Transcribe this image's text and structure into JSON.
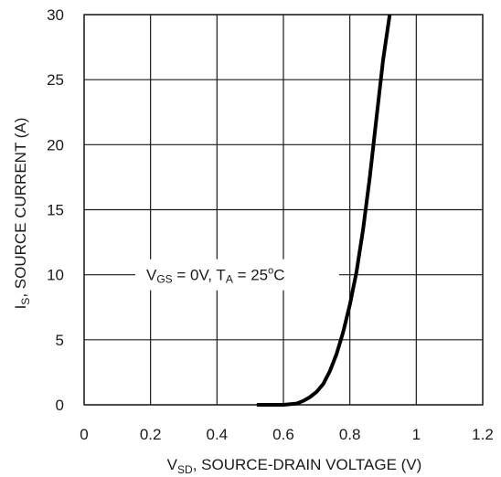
{
  "chart_data": {
    "type": "line",
    "title": "",
    "xlabel": "V<sub>SD</sub>, SOURCE-DRAIN VOLTAGE (V)",
    "xlabel_parts": {
      "main": "V",
      "sub": "SD",
      "rest": ", SOURCE-DRAIN VOLTAGE (V)"
    },
    "ylabel_parts": {
      "main": "I",
      "sub": "S",
      "rest": ", SOURCE CURRENT (A)"
    },
    "xlim": [
      0,
      1.2
    ],
    "ylim": [
      0,
      30
    ],
    "x_ticks": [
      "0",
      "0.2",
      "0.4",
      "0.6",
      "0.8",
      "1",
      "1.2"
    ],
    "y_ticks": [
      "0",
      "5",
      "10",
      "15",
      "20",
      "25",
      "30"
    ],
    "grid": true,
    "annotation": {
      "v_main": "V",
      "v_sub": "GS",
      "v_rest": " = 0V, T",
      "t_sub": "A",
      "t_rest": " = 25",
      "deg": "o",
      "unit": "C"
    },
    "series": [
      {
        "x": [
          0.52,
          0.6,
          0.64,
          0.66,
          0.68,
          0.7,
          0.72,
          0.74,
          0.76,
          0.78,
          0.8,
          0.82,
          0.84,
          0.86,
          0.88,
          0.9,
          0.92
        ],
        "y": [
          0,
          0,
          0.1,
          0.3,
          0.6,
          1.0,
          1.6,
          2.6,
          3.9,
          5.6,
          7.7,
          10.2,
          13.5,
          17.5,
          22.0,
          26.5,
          30
        ]
      }
    ]
  }
}
